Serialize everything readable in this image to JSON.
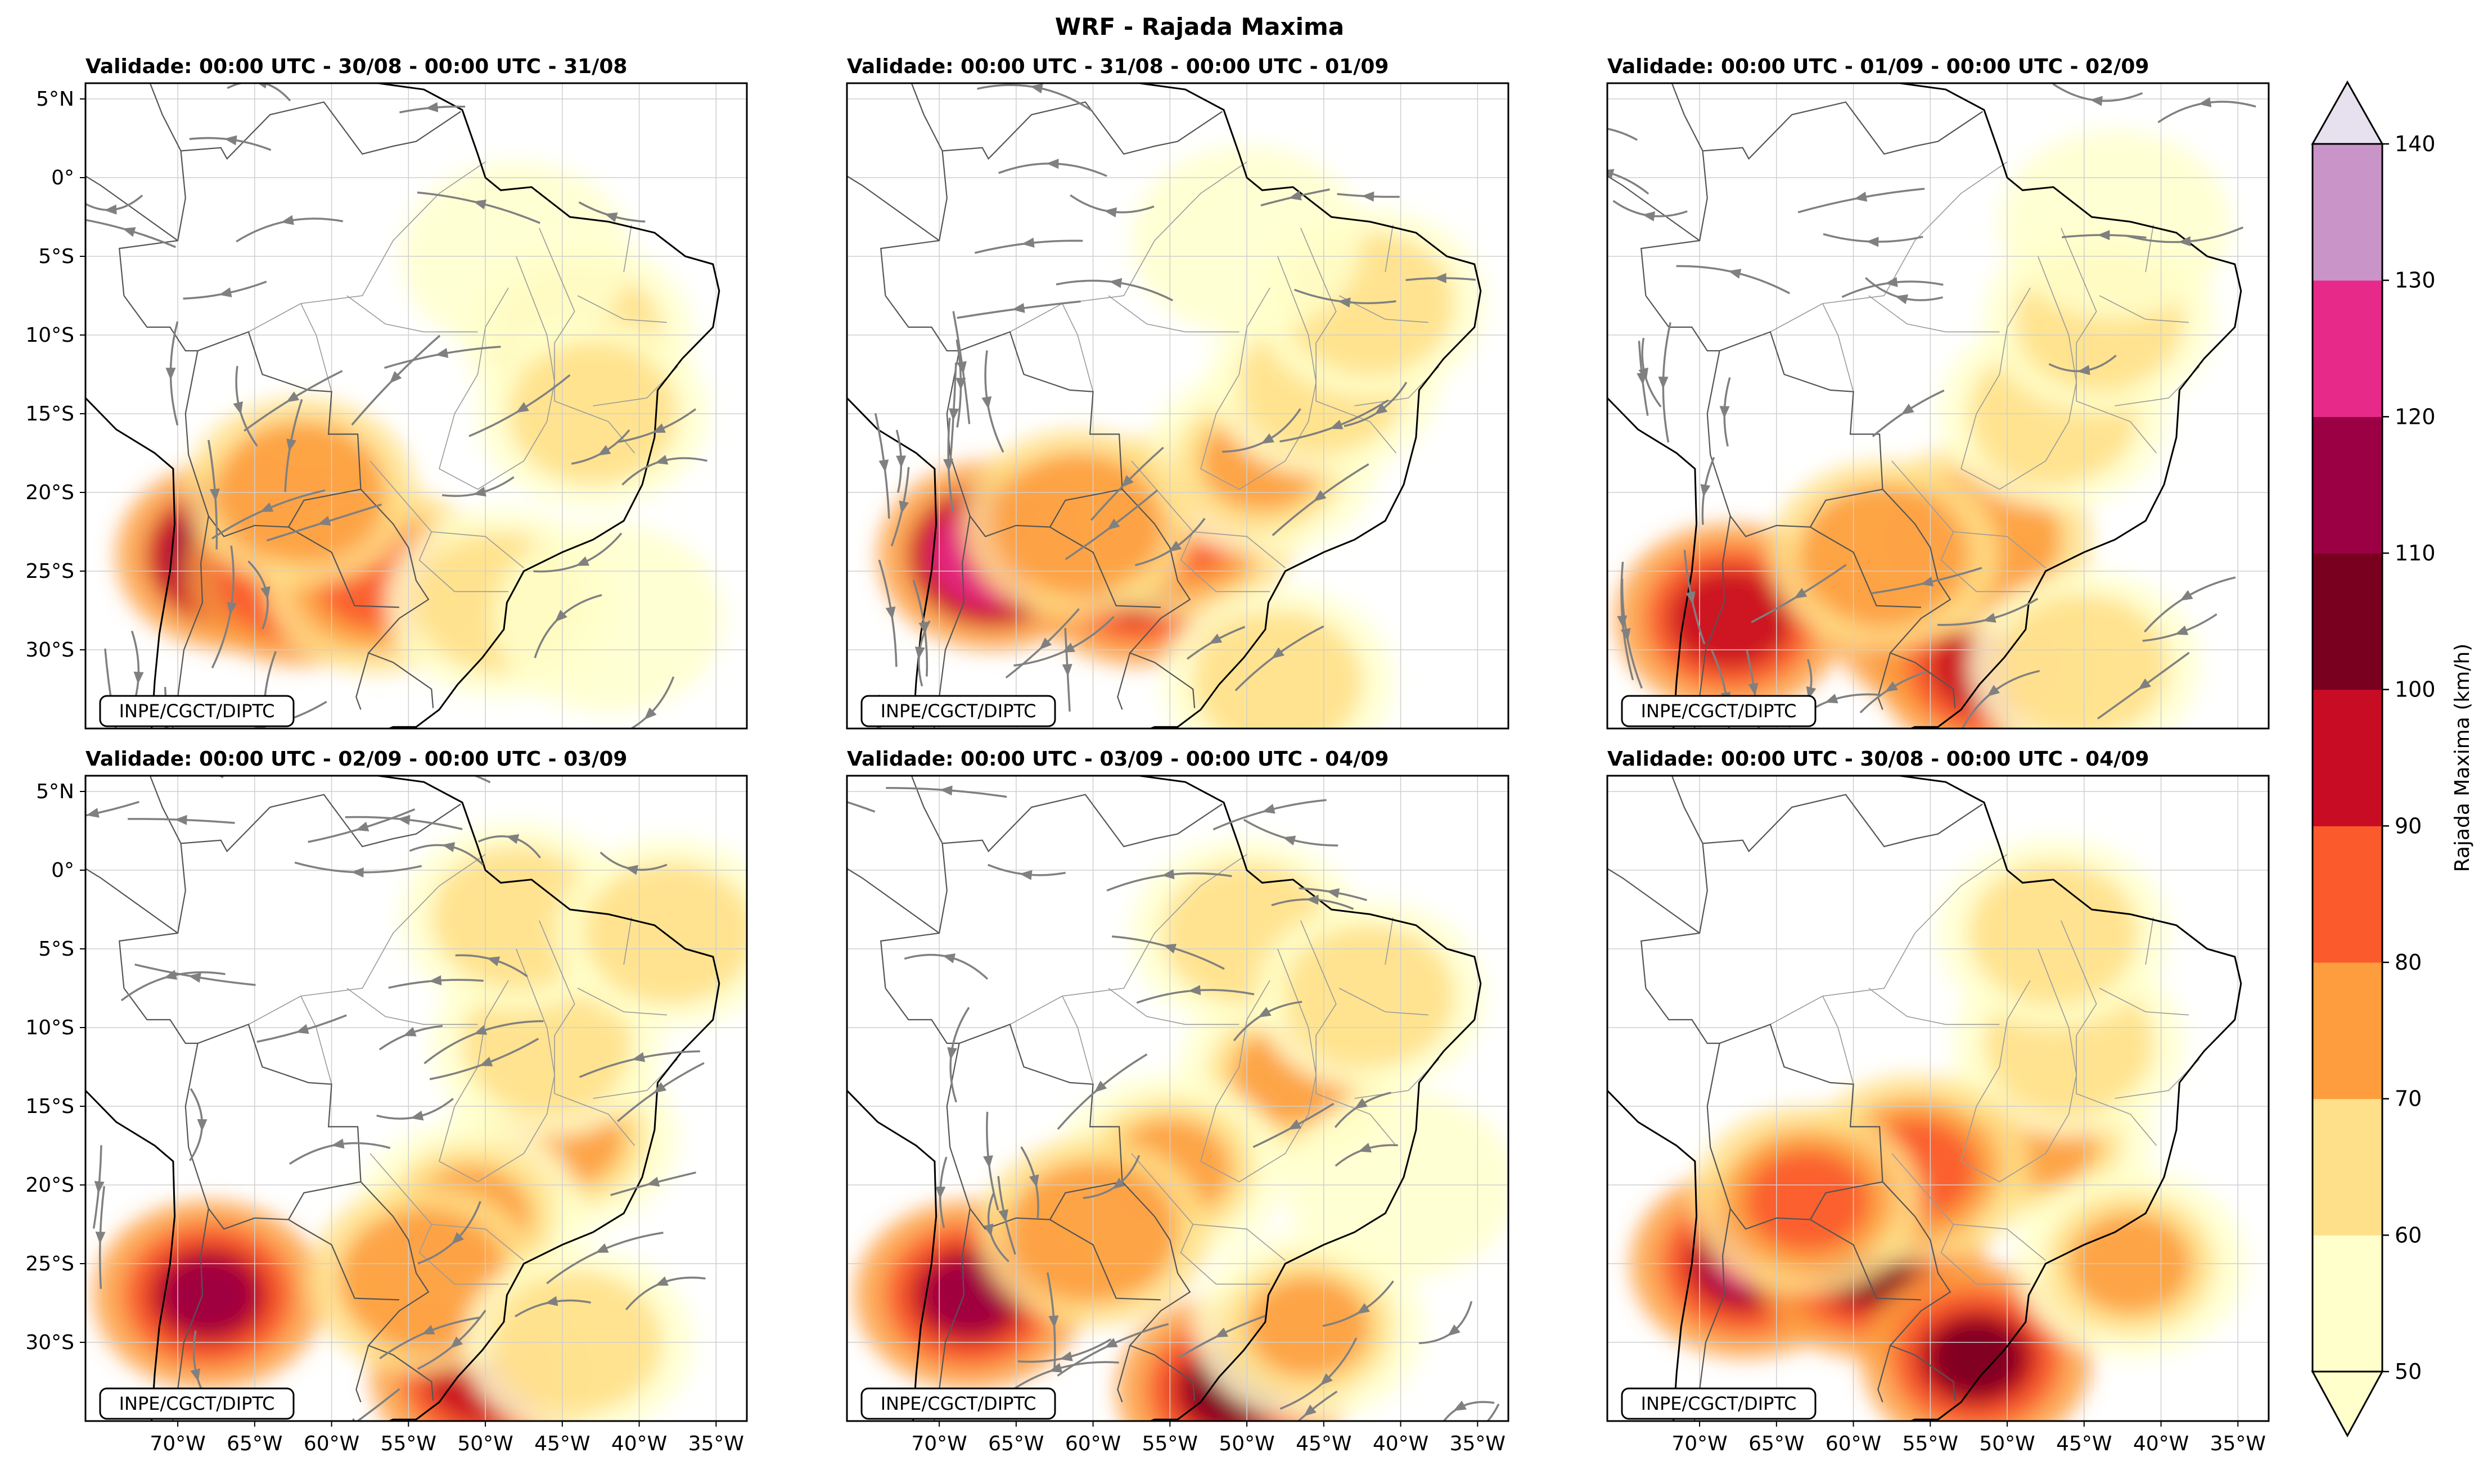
{
  "figure": {
    "title": "WRF - Rajada Maxima",
    "credit": "INPE/CGCT/DIPTC"
  },
  "panels": [
    {
      "validity": "Validade: 00:00 UTC - 30/08 - 00:00 UTC - 31/08",
      "streamlines": true
    },
    {
      "validity": "Validade: 00:00 UTC - 31/08 - 00:00 UTC - 01/09",
      "streamlines": true
    },
    {
      "validity": "Validade: 00:00 UTC - 01/09 - 00:00 UTC - 02/09",
      "streamlines": true
    },
    {
      "validity": "Validade: 00:00 UTC - 02/09 - 00:00 UTC - 03/09",
      "streamlines": true
    },
    {
      "validity": "Validade: 00:00 UTC - 03/09 - 00:00 UTC - 04/09",
      "streamlines": true
    },
    {
      "validity": "Validade: 00:00 UTC - 30/08 - 00:00 UTC - 04/09",
      "streamlines": false
    }
  ],
  "axes": {
    "lat_ticks": [
      "5°N",
      "0°",
      "5°S",
      "10°S",
      "15°S",
      "20°S",
      "25°S",
      "30°S"
    ],
    "lon_ticks": [
      "70°W",
      "65°W",
      "60°W",
      "55°W",
      "50°W",
      "45°W",
      "40°W",
      "35°W"
    ]
  },
  "colorbar": {
    "label": "Rajada Maxima (km/h)",
    "ticks": [
      "50",
      "60",
      "70",
      "80",
      "90",
      "100",
      "110",
      "120",
      "130",
      "140"
    ],
    "colors": [
      "#ffffcc",
      "#ffe08a",
      "#fd9d3e",
      "#fb5a2c",
      "#c80c24",
      "#7a0020",
      "#9b0045",
      "#e7298a",
      "#c994c7",
      "#e7e1ef"
    ]
  },
  "map_colors": {
    "streamline": "#808080",
    "coast": "#000000",
    "border": "#777777",
    "grid": "#cfcfcf"
  }
}
